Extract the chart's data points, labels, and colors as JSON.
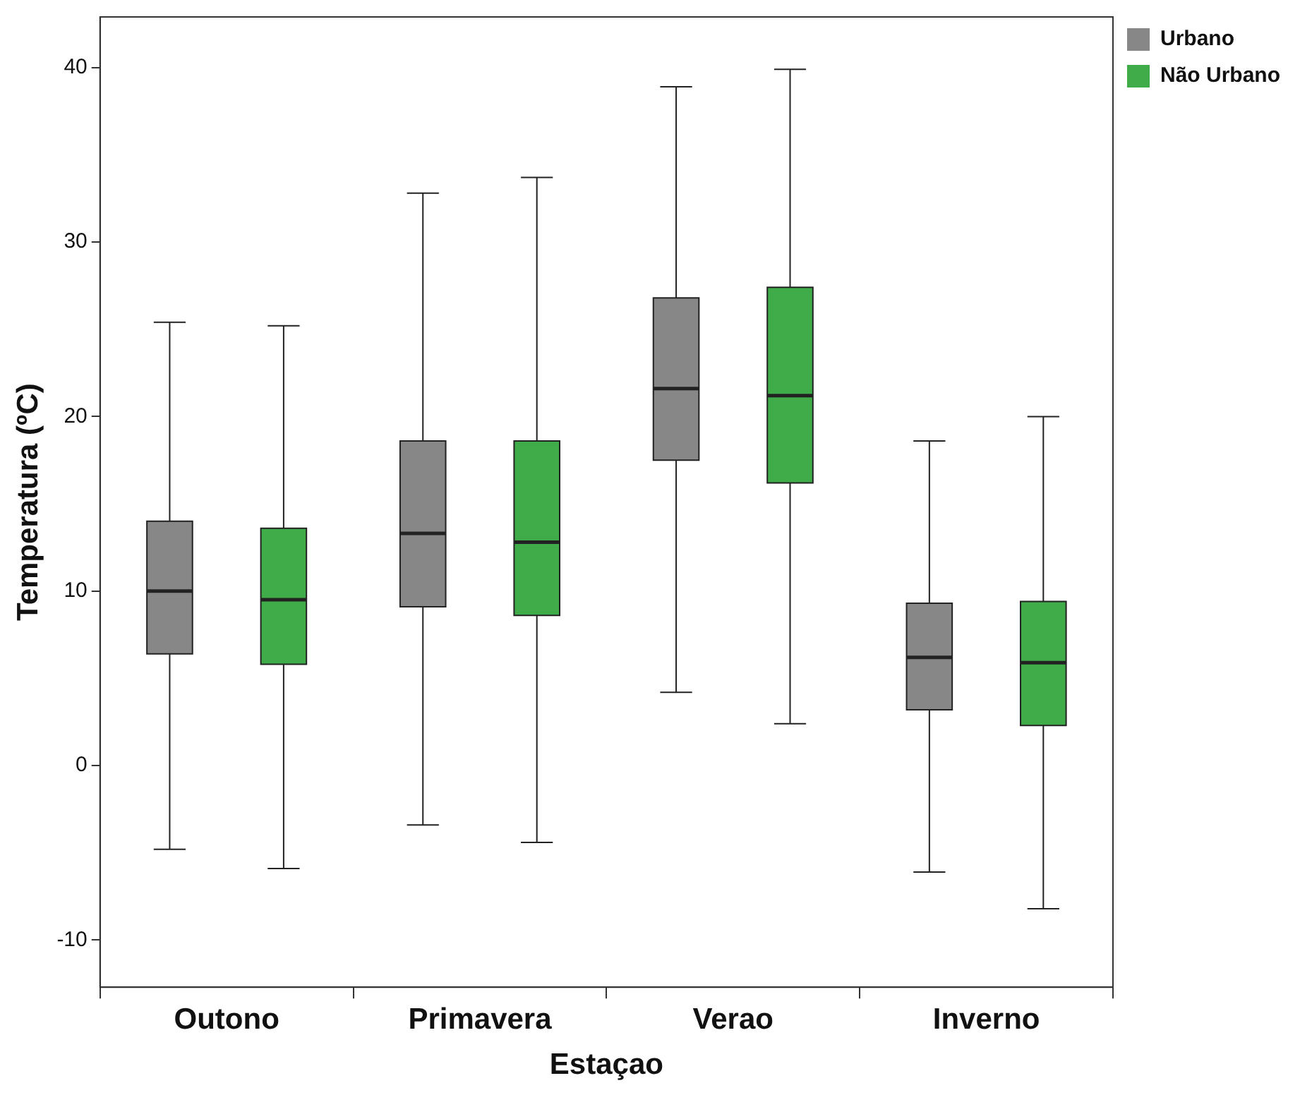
{
  "chart_data": {
    "type": "box",
    "xlabel": "Estaçao",
    "ylabel": "Temperatura (ºC)",
    "categories": [
      "Outono",
      "Primavera",
      "Verao",
      "Inverno"
    ],
    "ylim": [
      -12.7,
      42.9
    ],
    "yticks": [
      -10,
      0,
      10,
      20,
      30,
      40
    ],
    "grid": false,
    "legend": "top right",
    "series": [
      {
        "name": "Urbano",
        "color": "#878787",
        "boxes": [
          {
            "low": -4.8,
            "q1": 6.4,
            "median": 10.0,
            "q3": 14.0,
            "high": 25.4
          },
          {
            "low": -3.4,
            "q1": 9.1,
            "median": 13.3,
            "q3": 18.6,
            "high": 32.8
          },
          {
            "low": 4.2,
            "q1": 17.5,
            "median": 21.6,
            "q3": 26.8,
            "high": 38.9
          },
          {
            "low": -6.1,
            "q1": 3.2,
            "median": 6.2,
            "q3": 9.3,
            "high": 18.6
          }
        ]
      },
      {
        "name": "Não Urbano",
        "color": "#3fab49",
        "boxes": [
          {
            "low": -5.9,
            "q1": 5.8,
            "median": 9.5,
            "q3": 13.6,
            "high": 25.2
          },
          {
            "low": -4.4,
            "q1": 8.6,
            "median": 12.8,
            "q3": 18.6,
            "high": 33.7
          },
          {
            "low": 2.4,
            "q1": 16.2,
            "median": 21.2,
            "q3": 27.4,
            "high": 39.9
          },
          {
            "low": -8.2,
            "q1": 2.3,
            "median": 5.9,
            "q3": 9.4,
            "high": 20.0
          }
        ]
      }
    ]
  }
}
